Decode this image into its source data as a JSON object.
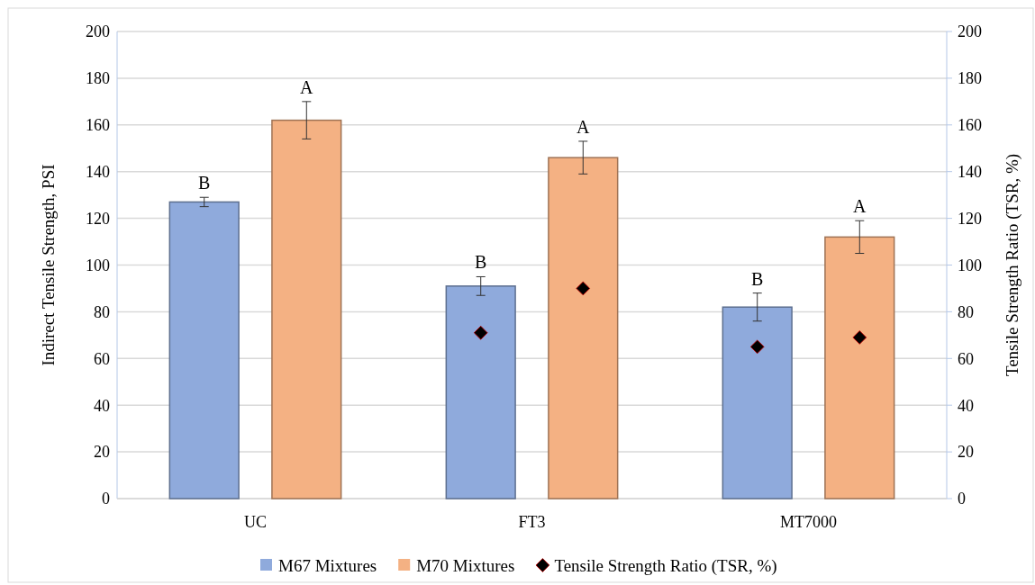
{
  "chart_data": {
    "type": "bar",
    "categories": [
      "UC",
      "FT3",
      "MT7000"
    ],
    "ylabel": "Indirect Tensile Strength, PSI",
    "y2label": "Tensile Strength Ratio (TSR, %)",
    "ylim": [
      0,
      200
    ],
    "yticks": [
      0,
      20,
      40,
      60,
      80,
      100,
      120,
      140,
      160,
      180,
      200
    ],
    "y2lim": [
      0,
      200
    ],
    "y2ticks": [
      0,
      20,
      40,
      60,
      80,
      100,
      120,
      140,
      160,
      180,
      200
    ],
    "grid": "y",
    "legend": "bottom",
    "series": [
      {
        "name": "M67 Mixtures",
        "color": "#8faadc",
        "values": [
          127,
          91,
          82
        ],
        "errors": [
          2,
          4,
          6
        ]
      },
      {
        "name": "M70 Mixtures",
        "color": "#f4b183",
        "values": [
          162,
          146,
          112
        ],
        "errors": [
          8,
          7,
          7
        ]
      },
      {
        "name": "Tensile Strength Ratio (TSR, %)",
        "type": "scatter",
        "axis": "y2",
        "marker": "diamond",
        "color": "#000000",
        "x": [
          "FT3",
          "FT3",
          "MT7000",
          "MT7000"
        ],
        "values": [
          71,
          90,
          65,
          69
        ]
      }
    ],
    "annotations": [
      "B",
      "A",
      "B",
      "A",
      "B",
      "A"
    ]
  }
}
